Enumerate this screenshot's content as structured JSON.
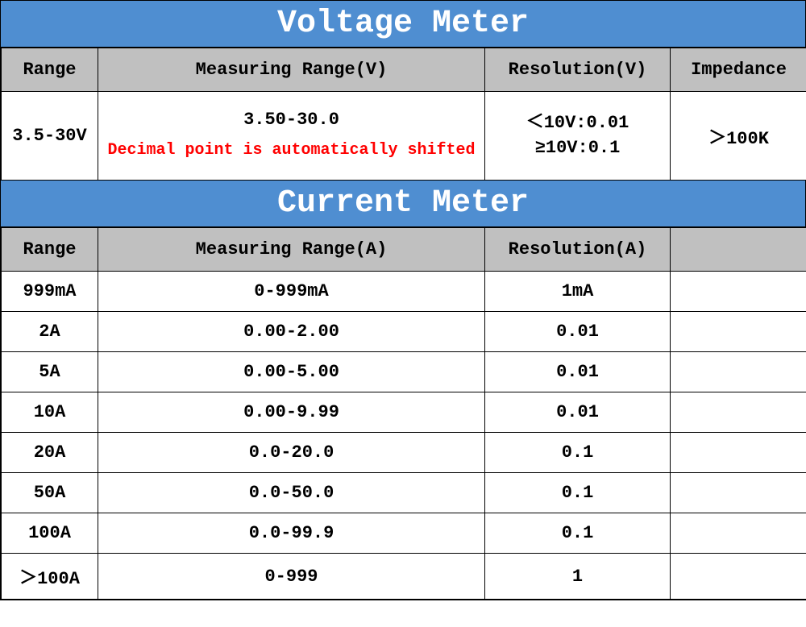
{
  "colors": {
    "title_bg": "#4f8ed1",
    "title_fg": "#ffffff",
    "header_bg": "#c0c0c0",
    "cell_bg": "#ffffff",
    "border": "#000000",
    "note_color": "#ff0000"
  },
  "voltage": {
    "title": "Voltage Meter",
    "headers": {
      "range": "Range",
      "measuring": "Measuring Range(V)",
      "resolution": "Resolution(V)",
      "impedance": "Impedance"
    },
    "row": {
      "range": "3.5-30V",
      "measuring_main": "3.50-30.0",
      "measuring_note": "Decimal point is automatically shifted",
      "resolution_line1": "＜10V:0.01",
      "resolution_line2": "≥10V:0.1",
      "impedance": "＞100K"
    }
  },
  "current": {
    "title": "Current Meter",
    "headers": {
      "range": "Range",
      "measuring": "Measuring Range(A)",
      "resolution": "Resolution(A)",
      "blank": ""
    },
    "rows": [
      {
        "range": "999mA",
        "measuring": "0-999mA",
        "resolution": "1mA",
        "blank": ""
      },
      {
        "range": "2A",
        "measuring": "0.00-2.00",
        "resolution": "0.01",
        "blank": ""
      },
      {
        "range": "5A",
        "measuring": "0.00-5.00",
        "resolution": "0.01",
        "blank": ""
      },
      {
        "range": "10A",
        "measuring": "0.00-9.99",
        "resolution": "0.01",
        "blank": ""
      },
      {
        "range": "20A",
        "measuring": "0.0-20.0",
        "resolution": "0.1",
        "blank": ""
      },
      {
        "range": "50A",
        "measuring": "0.0-50.0",
        "resolution": "0.1",
        "blank": ""
      },
      {
        "range": "100A",
        "measuring": "0.0-99.9",
        "resolution": "0.1",
        "blank": ""
      },
      {
        "range": "＞100A",
        "measuring": "0-999",
        "resolution": "1",
        "blank": ""
      }
    ]
  }
}
